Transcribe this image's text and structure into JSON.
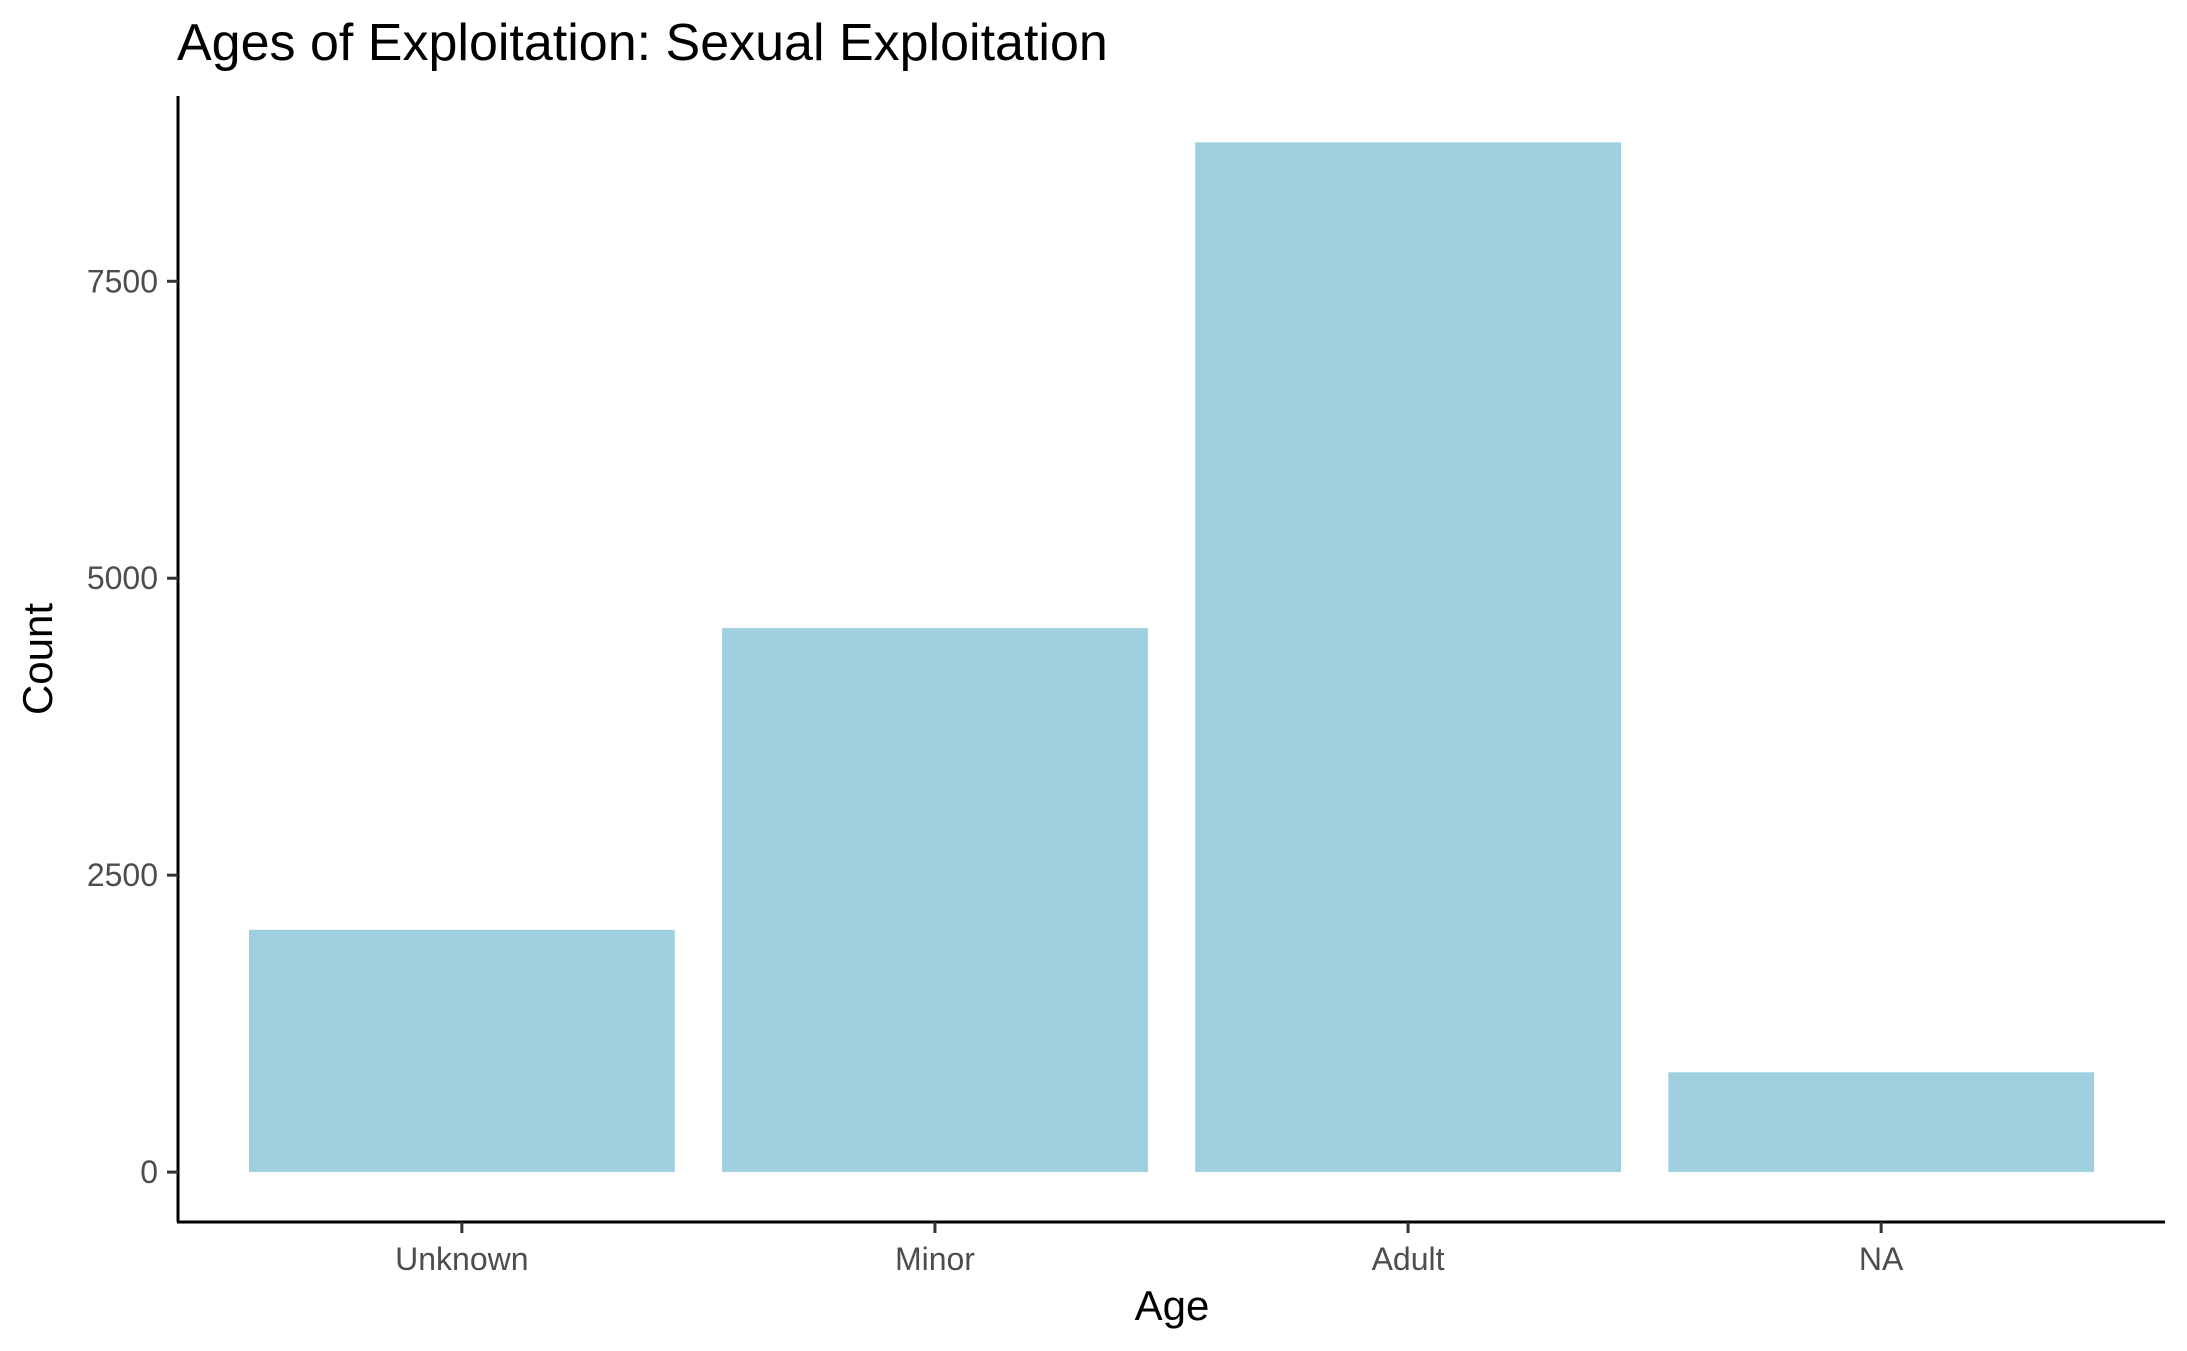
{
  "chart_data": {
    "type": "bar",
    "title": "Ages of Exploitation: Sexual Exploitation",
    "xlabel": "Age",
    "ylabel": "Count",
    "categories": [
      "Unknown",
      "Minor",
      "Adult",
      "NA"
    ],
    "values": [
      2040,
      4580,
      8670,
      840
    ],
    "yticks": [
      0,
      2500,
      5000,
      7500
    ],
    "ylim": [
      -420,
      9060
    ],
    "bar_color": "#a0cfe0",
    "grid": false,
    "legend": "none"
  }
}
